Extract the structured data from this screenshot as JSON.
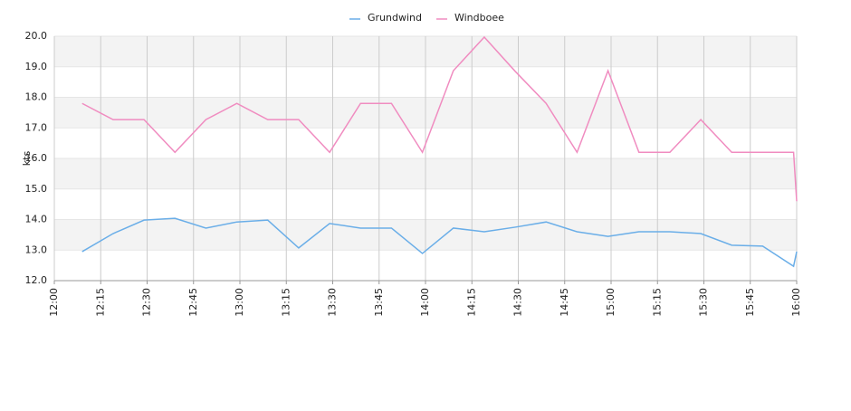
{
  "chart_data": {
    "type": "line",
    "y_label": "kts",
    "x": [
      "12:09",
      "12:19",
      "12:29",
      "12:39",
      "12:49",
      "12:59",
      "13:09",
      "13:19",
      "13:29",
      "13:39",
      "13:49",
      "13:59",
      "14:09",
      "14:19",
      "14:29",
      "14:39",
      "14:49",
      "14:59",
      "15:09",
      "15:19",
      "15:29",
      "15:39",
      "15:49",
      "15:59",
      "16:00"
    ],
    "series": [
      {
        "name": "Grundwind",
        "color": "#6aaee8",
        "values": [
          12.95,
          13.54,
          13.98,
          14.04,
          13.72,
          13.92,
          13.98,
          13.07,
          13.87,
          13.72,
          13.72,
          12.89,
          13.72,
          13.6,
          13.75,
          13.92,
          13.6,
          13.45,
          13.6,
          13.6,
          13.54,
          13.16,
          13.13,
          12.47,
          12.95
        ]
      },
      {
        "name": "Windboee",
        "color": "#f08cc0",
        "values": [
          17.8,
          17.27,
          17.27,
          16.2,
          17.27,
          17.8,
          17.27,
          17.27,
          16.2,
          17.8,
          17.8,
          16.2,
          18.87,
          19.97,
          18.85,
          17.8,
          16.2,
          18.87,
          16.2,
          16.2,
          17.27,
          16.2,
          16.2,
          16.2,
          14.6
        ]
      }
    ],
    "xlim": [
      "12:00",
      "16:00"
    ],
    "xticks": [
      "12:00",
      "12:15",
      "12:30",
      "12:45",
      "13:00",
      "13:15",
      "13:30",
      "13:45",
      "14:00",
      "14:15",
      "14:30",
      "14:45",
      "15:00",
      "15:15",
      "15:30",
      "15:45",
      "16:00"
    ],
    "ylim": [
      12,
      20
    ],
    "yticks": [
      {
        "value": 12,
        "label": "12.0"
      },
      {
        "value": 13,
        "label": "13.0"
      },
      {
        "value": 14,
        "label": "14.0"
      },
      {
        "value": 15,
        "label": "15.0"
      },
      {
        "value": 16,
        "label": "16.0"
      },
      {
        "value": 17,
        "label": "17.0"
      },
      {
        "value": 18,
        "label": "18.0"
      },
      {
        "value": 19,
        "label": "19.0"
      },
      {
        "value": 20,
        "label": "20.0"
      }
    ],
    "grid": true,
    "legend": "top"
  }
}
